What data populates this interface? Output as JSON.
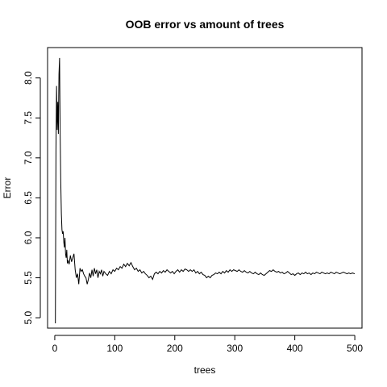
{
  "chart_data": {
    "type": "line",
    "title": "OOB error vs amount of trees",
    "xlabel": "trees",
    "ylabel": "Error",
    "xlim": [
      -12,
      512
    ],
    "ylim": [
      4.87,
      8.38
    ],
    "x_ticks": [
      0,
      100,
      200,
      300,
      400,
      500
    ],
    "x_tick_labels": [
      "0",
      "100",
      "200",
      "300",
      "400",
      "500"
    ],
    "y_ticks": [
      5.0,
      5.5,
      6.0,
      6.5,
      7.0,
      7.5,
      8.0
    ],
    "y_tick_labels": [
      "5.0",
      "5.5",
      "6.0",
      "6.5",
      "7.0",
      "7.5",
      "8.0"
    ],
    "grid": false,
    "legend": "none",
    "line_color": "#000000",
    "series": [
      {
        "points": [
          [
            1,
            4.93
          ],
          [
            2,
            7.1
          ],
          [
            3,
            7.9
          ],
          [
            4,
            7.35
          ],
          [
            5,
            7.7
          ],
          [
            6,
            7.3
          ],
          [
            7,
            8.05
          ],
          [
            8,
            8.25
          ],
          [
            9,
            7.3
          ],
          [
            10,
            6.7
          ],
          [
            11,
            6.3
          ],
          [
            12,
            6.1
          ],
          [
            13,
            6.05
          ],
          [
            14,
            6.08
          ],
          [
            15,
            5.95
          ],
          [
            16,
            5.88
          ],
          [
            17,
            6.0
          ],
          [
            18,
            5.8
          ],
          [
            19,
            5.75
          ],
          [
            20,
            5.85
          ],
          [
            21,
            5.68
          ],
          [
            22,
            5.72
          ],
          [
            24,
            5.67
          ],
          [
            26,
            5.78
          ],
          [
            28,
            5.7
          ],
          [
            30,
            5.75
          ],
          [
            32,
            5.8
          ],
          [
            34,
            5.6
          ],
          [
            36,
            5.5
          ],
          [
            38,
            5.55
          ],
          [
            40,
            5.42
          ],
          [
            42,
            5.62
          ],
          [
            44,
            5.58
          ],
          [
            46,
            5.6
          ],
          [
            48,
            5.55
          ],
          [
            50,
            5.52
          ],
          [
            52,
            5.5
          ],
          [
            54,
            5.42
          ],
          [
            56,
            5.48
          ],
          [
            58,
            5.56
          ],
          [
            60,
            5.5
          ],
          [
            62,
            5.6
          ],
          [
            64,
            5.52
          ],
          [
            66,
            5.62
          ],
          [
            68,
            5.55
          ],
          [
            70,
            5.6
          ],
          [
            72,
            5.5
          ],
          [
            74,
            5.58
          ],
          [
            76,
            5.55
          ],
          [
            78,
            5.6
          ],
          [
            80,
            5.52
          ],
          [
            82,
            5.58
          ],
          [
            85,
            5.55
          ],
          [
            88,
            5.53
          ],
          [
            91,
            5.58
          ],
          [
            94,
            5.55
          ],
          [
            97,
            5.6
          ],
          [
            100,
            5.58
          ],
          [
            103,
            5.62
          ],
          [
            106,
            5.6
          ],
          [
            109,
            5.64
          ],
          [
            112,
            5.62
          ],
          [
            115,
            5.67
          ],
          [
            118,
            5.64
          ],
          [
            121,
            5.68
          ],
          [
            124,
            5.65
          ],
          [
            127,
            5.69
          ],
          [
            130,
            5.64
          ],
          [
            133,
            5.6
          ],
          [
            136,
            5.62
          ],
          [
            139,
            5.58
          ],
          [
            142,
            5.6
          ],
          [
            145,
            5.56
          ],
          [
            148,
            5.58
          ],
          [
            151,
            5.55
          ],
          [
            154,
            5.53
          ],
          [
            157,
            5.5
          ],
          [
            160,
            5.52
          ],
          [
            163,
            5.48
          ],
          [
            166,
            5.55
          ],
          [
            169,
            5.57
          ],
          [
            172,
            5.55
          ],
          [
            175,
            5.58
          ],
          [
            178,
            5.56
          ],
          [
            181,
            5.59
          ],
          [
            184,
            5.57
          ],
          [
            187,
            5.6
          ],
          [
            190,
            5.58
          ],
          [
            193,
            5.56
          ],
          [
            196,
            5.58
          ],
          [
            199,
            5.55
          ],
          [
            202,
            5.58
          ],
          [
            205,
            5.6
          ],
          [
            208,
            5.57
          ],
          [
            211,
            5.6
          ],
          [
            214,
            5.58
          ],
          [
            217,
            5.61
          ],
          [
            220,
            5.6
          ],
          [
            223,
            5.58
          ],
          [
            226,
            5.6
          ],
          [
            229,
            5.58
          ],
          [
            232,
            5.6
          ],
          [
            235,
            5.56
          ],
          [
            238,
            5.58
          ],
          [
            241,
            5.55
          ],
          [
            244,
            5.57
          ],
          [
            247,
            5.54
          ],
          [
            250,
            5.53
          ],
          [
            253,
            5.5
          ],
          [
            256,
            5.52
          ],
          [
            259,
            5.5
          ],
          [
            262,
            5.53
          ],
          [
            265,
            5.54
          ],
          [
            268,
            5.56
          ],
          [
            271,
            5.55
          ],
          [
            274,
            5.57
          ],
          [
            277,
            5.55
          ],
          [
            280,
            5.58
          ],
          [
            283,
            5.56
          ],
          [
            286,
            5.59
          ],
          [
            289,
            5.57
          ],
          [
            292,
            5.6
          ],
          [
            295,
            5.58
          ],
          [
            298,
            5.6
          ],
          [
            301,
            5.59
          ],
          [
            304,
            5.58
          ],
          [
            307,
            5.6
          ],
          [
            310,
            5.58
          ],
          [
            313,
            5.57
          ],
          [
            316,
            5.59
          ],
          [
            319,
            5.57
          ],
          [
            322,
            5.56
          ],
          [
            325,
            5.58
          ],
          [
            328,
            5.56
          ],
          [
            331,
            5.55
          ],
          [
            334,
            5.57
          ],
          [
            337,
            5.55
          ],
          [
            340,
            5.54
          ],
          [
            343,
            5.56
          ],
          [
            346,
            5.54
          ],
          [
            349,
            5.53
          ],
          [
            352,
            5.55
          ],
          [
            355,
            5.57
          ],
          [
            358,
            5.59
          ],
          [
            361,
            5.58
          ],
          [
            364,
            5.6
          ],
          [
            367,
            5.58
          ],
          [
            370,
            5.57
          ],
          [
            373,
            5.58
          ],
          [
            376,
            5.56
          ],
          [
            379,
            5.57
          ],
          [
            382,
            5.55
          ],
          [
            385,
            5.56
          ],
          [
            388,
            5.58
          ],
          [
            391,
            5.56
          ],
          [
            394,
            5.54
          ],
          [
            397,
            5.55
          ],
          [
            400,
            5.53
          ],
          [
            403,
            5.55
          ],
          [
            406,
            5.56
          ],
          [
            409,
            5.54
          ],
          [
            412,
            5.56
          ],
          [
            415,
            5.55
          ],
          [
            418,
            5.57
          ],
          [
            421,
            5.55
          ],
          [
            424,
            5.56
          ],
          [
            427,
            5.54
          ],
          [
            430,
            5.56
          ],
          [
            433,
            5.55
          ],
          [
            436,
            5.57
          ],
          [
            439,
            5.56
          ],
          [
            442,
            5.55
          ],
          [
            445,
            5.57
          ],
          [
            448,
            5.56
          ],
          [
            451,
            5.55
          ],
          [
            454,
            5.56
          ],
          [
            457,
            5.55
          ],
          [
            460,
            5.57
          ],
          [
            463,
            5.56
          ],
          [
            466,
            5.55
          ],
          [
            469,
            5.57
          ],
          [
            472,
            5.56
          ],
          [
            475,
            5.55
          ],
          [
            478,
            5.56
          ],
          [
            481,
            5.57
          ],
          [
            484,
            5.56
          ],
          [
            487,
            5.55
          ],
          [
            490,
            5.56
          ],
          [
            493,
            5.55
          ],
          [
            496,
            5.56
          ],
          [
            500,
            5.55
          ]
        ]
      }
    ]
  }
}
